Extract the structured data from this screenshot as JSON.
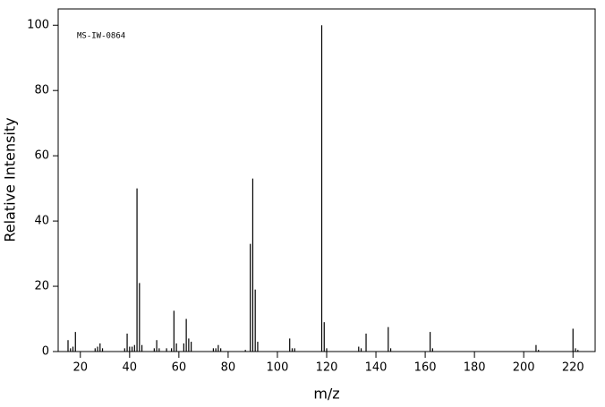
{
  "chart_data": {
    "type": "bar",
    "annotation": "MS-IW-0864",
    "x_label": "m/z",
    "y_label": "Relative Intensity",
    "x": [
      15,
      16,
      17,
      18,
      26,
      27,
      28,
      29,
      38,
      39,
      40,
      41,
      42,
      43,
      44,
      45,
      50,
      51,
      52,
      55,
      57,
      58,
      59,
      62,
      63,
      64,
      65,
      74,
      75,
      76,
      77,
      87,
      89,
      90,
      91,
      92,
      105,
      106,
      107,
      118,
      119,
      120,
      133,
      134,
      136,
      145,
      146,
      162,
      163,
      205,
      206,
      220,
      221,
      222
    ],
    "values": [
      3.5,
      1,
      1.5,
      6,
      1,
      1.5,
      2.5,
      1,
      1,
      5.5,
      1.5,
      1.5,
      2,
      50,
      21,
      2,
      1,
      3.5,
      1,
      1,
      1,
      12.5,
      2.5,
      2.5,
      10,
      4,
      3,
      1,
      1,
      2,
      1,
      0.5,
      33,
      53,
      19,
      3,
      4,
      1,
      1,
      100,
      9,
      1,
      1.5,
      1,
      5.5,
      7.5,
      1,
      6,
      1,
      2,
      0.5,
      7,
      1,
      0.5
    ],
    "color": "#000000",
    "xlim": [
      11,
      229
    ],
    "xticks": [
      20,
      40,
      60,
      80,
      100,
      120,
      140,
      160,
      180,
      200,
      220
    ],
    "ylim": [
      0,
      105
    ],
    "yticks": [
      0,
      20,
      40,
      60,
      80,
      100
    ]
  }
}
